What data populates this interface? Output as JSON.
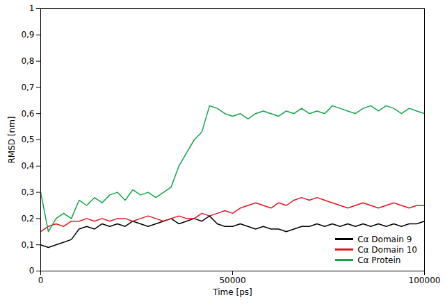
{
  "chart_data": {
    "type": "line",
    "x_label": "Time [ps]",
    "y_label": "RMSD [nm]",
    "xlim": [
      0,
      100000
    ],
    "xticks": [
      0,
      50000,
      100000
    ],
    "ylim": [
      0,
      1
    ],
    "yticks": [
      0,
      {
        "value": 0.1,
        "label": "0,1"
      },
      {
        "value": 0.2,
        "label": "0,2"
      },
      {
        "value": 0.3,
        "label": "0,3"
      },
      {
        "value": 0.4,
        "label": "0,4"
      },
      {
        "value": 0.5,
        "label": "0,5"
      },
      {
        "value": 0.6,
        "label": "0,6"
      },
      {
        "value": 0.7,
        "label": "0,7"
      },
      {
        "value": 0.8,
        "label": "0,8"
      },
      {
        "value": 0.9,
        "label": "0,9"
      },
      1
    ],
    "grid": false,
    "legend": "bottom-right",
    "x": [
      0,
      2000,
      4000,
      6000,
      8000,
      10000,
      12000,
      14000,
      16000,
      18000,
      20000,
      22000,
      24000,
      26000,
      28000,
      30000,
      32000,
      34000,
      36000,
      38000,
      40000,
      42000,
      44000,
      46000,
      48000,
      50000,
      52000,
      54000,
      56000,
      58000,
      60000,
      62000,
      64000,
      66000,
      68000,
      70000,
      72000,
      74000,
      76000,
      78000,
      80000,
      82000,
      84000,
      86000,
      88000,
      90000,
      92000,
      94000,
      96000,
      98000,
      100000
    ],
    "series": [
      {
        "name": "Cα Domain 9",
        "color": "#000000",
        "values": [
          0.1,
          0.09,
          0.1,
          0.11,
          0.12,
          0.16,
          0.17,
          0.16,
          0.18,
          0.17,
          0.18,
          0.17,
          0.19,
          0.18,
          0.17,
          0.18,
          0.19,
          0.2,
          0.18,
          0.19,
          0.2,
          0.19,
          0.21,
          0.18,
          0.17,
          0.17,
          0.18,
          0.17,
          0.16,
          0.17,
          0.16,
          0.16,
          0.15,
          0.16,
          0.17,
          0.17,
          0.18,
          0.17,
          0.18,
          0.17,
          0.18,
          0.17,
          0.18,
          0.17,
          0.18,
          0.17,
          0.18,
          0.17,
          0.18,
          0.18,
          0.19
        ]
      },
      {
        "name": "Cα Domain 10",
        "color": "#e3141c",
        "values": [
          0.15,
          0.17,
          0.18,
          0.17,
          0.19,
          0.19,
          0.2,
          0.19,
          0.2,
          0.19,
          0.2,
          0.2,
          0.19,
          0.2,
          0.21,
          0.2,
          0.19,
          0.2,
          0.21,
          0.2,
          0.2,
          0.22,
          0.21,
          0.22,
          0.23,
          0.22,
          0.24,
          0.25,
          0.26,
          0.25,
          0.24,
          0.26,
          0.25,
          0.27,
          0.28,
          0.27,
          0.28,
          0.27,
          0.26,
          0.25,
          0.24,
          0.25,
          0.26,
          0.25,
          0.24,
          0.25,
          0.26,
          0.25,
          0.24,
          0.25,
          0.25
        ]
      },
      {
        "name": "Cα Protein",
        "color": "#12a34a",
        "values": [
          0.3,
          0.15,
          0.2,
          0.22,
          0.2,
          0.27,
          0.25,
          0.28,
          0.26,
          0.29,
          0.3,
          0.27,
          0.31,
          0.29,
          0.3,
          0.28,
          0.3,
          0.32,
          0.4,
          0.45,
          0.5,
          0.53,
          0.63,
          0.62,
          0.6,
          0.59,
          0.6,
          0.58,
          0.6,
          0.61,
          0.6,
          0.59,
          0.61,
          0.6,
          0.62,
          0.6,
          0.61,
          0.6,
          0.63,
          0.62,
          0.61,
          0.6,
          0.62,
          0.63,
          0.61,
          0.63,
          0.62,
          0.6,
          0.62,
          0.61,
          0.6
        ]
      }
    ]
  }
}
